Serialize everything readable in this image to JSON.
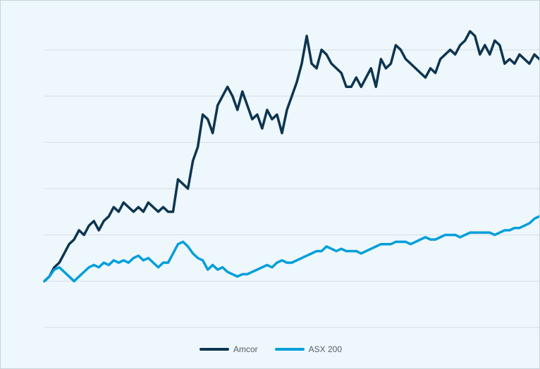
{
  "chart_data": {
    "type": "line",
    "title": "",
    "xlabel": "",
    "ylabel": "",
    "ylim": [
      90,
      160
    ],
    "grid": true,
    "legend_position": "bottom-center",
    "x": [
      0,
      1,
      2,
      3,
      4,
      5,
      6,
      7,
      8,
      9,
      10,
      11,
      12,
      13,
      14,
      15,
      16,
      17,
      18,
      19,
      20,
      21,
      22,
      23,
      24,
      25,
      26,
      27,
      28,
      29,
      30,
      31,
      32,
      33,
      34,
      35,
      36,
      37,
      38,
      39,
      40,
      41,
      42,
      43,
      44,
      45,
      46,
      47,
      48,
      49,
      50,
      51,
      52,
      53,
      54,
      55,
      56,
      57,
      58,
      59,
      60,
      61,
      62,
      63,
      64,
      65,
      66,
      67,
      68,
      69,
      70,
      71,
      72,
      73,
      74,
      75,
      76,
      77,
      78,
      79,
      80,
      81,
      82,
      83,
      84,
      85,
      86,
      87,
      88,
      89,
      90,
      91,
      92,
      93,
      94,
      95,
      96,
      97,
      98,
      99,
      100
    ],
    "series": [
      {
        "name": "Amcor",
        "color": "#0d3550",
        "values": [
          100.0,
          101.0,
          103.0,
          104.0,
          106.0,
          108.0,
          109.0,
          111.0,
          110.0,
          112.0,
          113.0,
          111.0,
          113.0,
          114.0,
          116.0,
          115.0,
          117.0,
          116.0,
          115.0,
          116.0,
          115.0,
          117.0,
          116.0,
          115.0,
          116.0,
          115.0,
          115.0,
          122.0,
          121.0,
          120.0,
          126.0,
          129.0,
          136.0,
          135.0,
          132.0,
          138.0,
          140.0,
          142.0,
          140.0,
          137.0,
          141.0,
          138.0,
          135.0,
          136.0,
          133.0,
          137.0,
          135.0,
          136.0,
          132.0,
          137.0,
          140.0,
          143.0,
          147.0,
          153.0,
          147.0,
          146.0,
          150.0,
          149.0,
          147.0,
          146.0,
          145.0,
          142.0,
          142.0,
          144.0,
          142.0,
          144.0,
          146.0,
          142.0,
          148.0,
          146.0,
          147.0,
          151.0,
          150.0,
          148.0,
          147.0,
          146.0,
          145.0,
          144.0,
          146.0,
          145.0,
          148.0,
          149.0,
          150.0,
          149.0,
          151.0,
          152.0,
          154.0,
          153.0,
          149.0,
          151.0,
          149.0,
          152.0,
          151.0,
          147.0,
          148.0,
          147.0,
          149.0,
          148.0,
          147.0,
          149.0,
          148.0
        ]
      },
      {
        "name": "ASX 200",
        "color": "#009fda",
        "values": [
          100.0,
          101.0,
          102.5,
          103.0,
          102.0,
          101.0,
          100.0,
          101.0,
          102.0,
          103.0,
          103.5,
          103.0,
          104.0,
          103.5,
          104.5,
          104.0,
          104.5,
          104.0,
          105.0,
          105.5,
          104.5,
          105.0,
          104.0,
          103.0,
          104.0,
          104.0,
          106.0,
          108.0,
          108.5,
          107.5,
          106.0,
          105.0,
          104.5,
          102.5,
          103.5,
          102.5,
          103.0,
          102.0,
          101.5,
          101.0,
          101.5,
          101.5,
          102.0,
          102.5,
          103.0,
          103.5,
          103.0,
          104.0,
          104.5,
          104.0,
          104.0,
          104.5,
          105.0,
          105.5,
          106.0,
          106.5,
          106.5,
          107.5,
          107.0,
          106.5,
          107.0,
          106.5,
          106.5,
          106.5,
          106.0,
          106.5,
          107.0,
          107.5,
          108.0,
          108.0,
          108.0,
          108.5,
          108.5,
          108.5,
          108.0,
          108.5,
          109.0,
          109.5,
          109.0,
          109.0,
          109.5,
          110.0,
          110.0,
          110.0,
          109.5,
          110.0,
          110.5,
          110.5,
          110.5,
          110.5,
          110.5,
          110.0,
          110.5,
          111.0,
          111.0,
          111.5,
          111.5,
          112.0,
          112.5,
          113.5,
          114.0
        ]
      }
    ]
  }
}
